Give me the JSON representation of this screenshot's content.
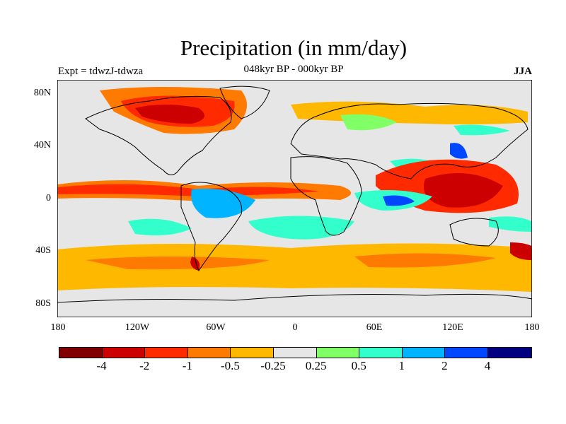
{
  "title": "Precipitation (in mm/day)",
  "subtitle": "048kyr BP - 000kyr BP",
  "experiment_label": "Expt = tdwzJ-tdwza",
  "season_label": "JJA",
  "y_ticks": [
    "80N",
    "40N",
    "0",
    "40S",
    "80S"
  ],
  "x_ticks": [
    "180",
    "120W",
    "60W",
    "0",
    "60E",
    "120E",
    "180"
  ],
  "colorbar": {
    "colors": [
      "#800000",
      "#cc0000",
      "#ff2a00",
      "#ff7a00",
      "#ffb800",
      "#e6e6e6",
      "#80ff66",
      "#33ffcc",
      "#00b4ff",
      "#0047ff",
      "#000080"
    ],
    "labels": [
      "-4",
      "-2",
      "-1",
      "-0.5",
      "-0.25",
      "0.25",
      "0.5",
      "1",
      "2",
      "4"
    ]
  },
  "colors": {
    "background": "#e6e6e6",
    "coastline": "#000000"
  }
}
